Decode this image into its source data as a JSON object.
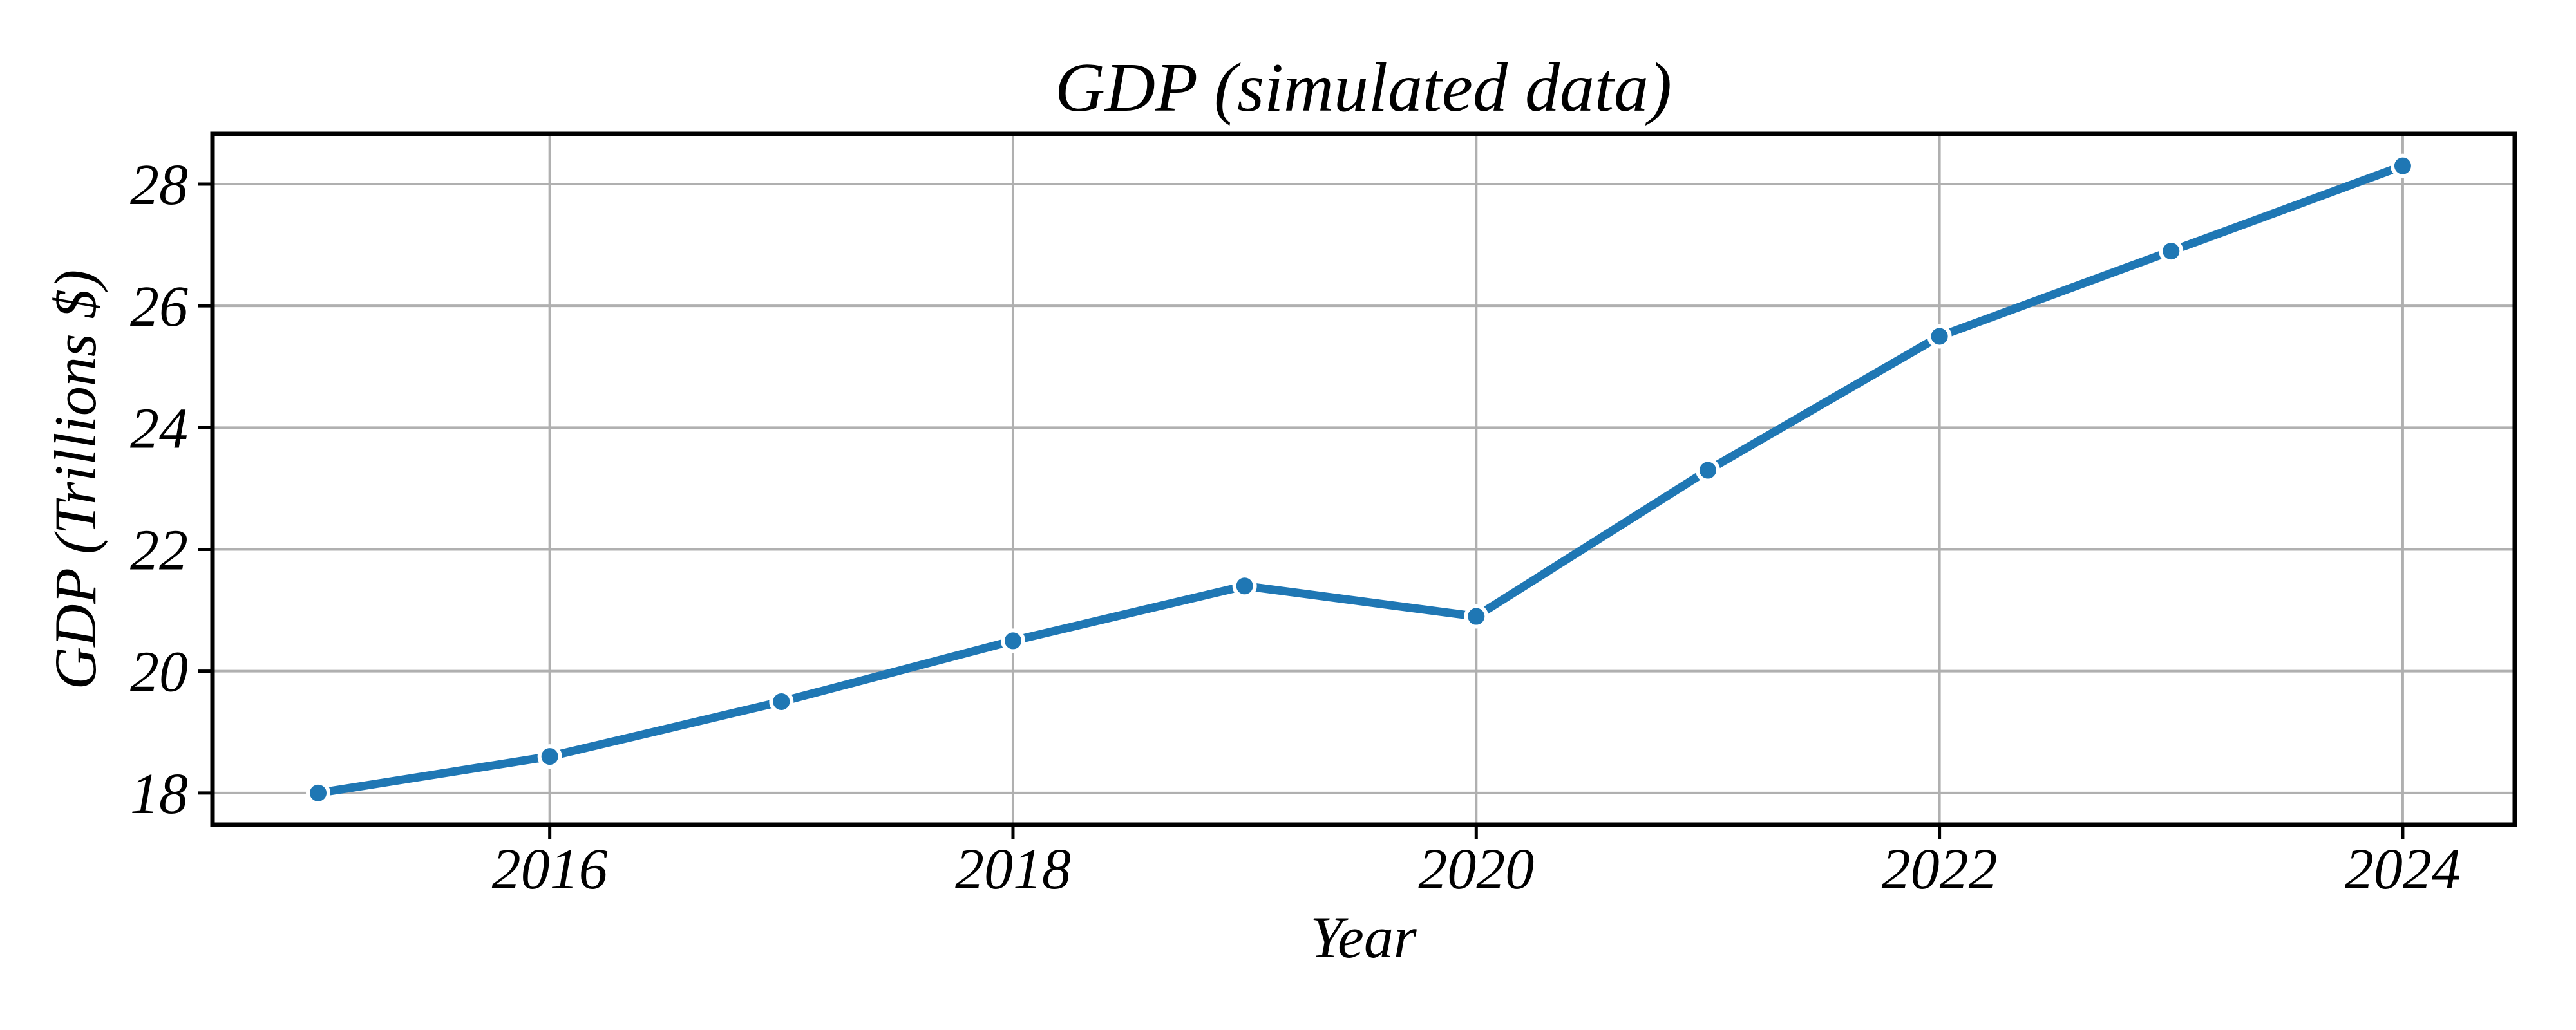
{
  "chart_data": {
    "type": "line",
    "title": "GDP (simulated data)",
    "xlabel": "Year",
    "ylabel": "GDP (Trillions $)",
    "series": [
      {
        "name": "GDP",
        "x": [
          2015,
          2016,
          2017,
          2018,
          2019,
          2020,
          2021,
          2022,
          2023,
          2024
        ],
        "y": [
          18.0,
          18.6,
          19.5,
          20.5,
          21.4,
          20.9,
          23.3,
          25.5,
          26.9,
          28.3
        ]
      }
    ],
    "xticks": [
      2016,
      2018,
      2020,
      2022,
      2024
    ],
    "yticks": [
      18,
      20,
      22,
      24,
      26,
      28
    ],
    "xtick_labels": [
      "2016",
      "2018",
      "2020",
      "2022",
      "2024"
    ],
    "ytick_labels": [
      "18",
      "20",
      "22",
      "24",
      "26",
      "28"
    ],
    "xlim": [
      2014.544,
      2024.484
    ],
    "ylim": [
      17.48,
      28.825
    ],
    "grid": true,
    "legend": false,
    "marker": "circle",
    "colors": {
      "line": "#1f77b4",
      "marker_fill": "#1f77b4",
      "marker_edge": "#ffffff",
      "grid": "#b0b0b0",
      "axis": "#000000",
      "text": "#000000",
      "background": "#ffffff"
    }
  }
}
